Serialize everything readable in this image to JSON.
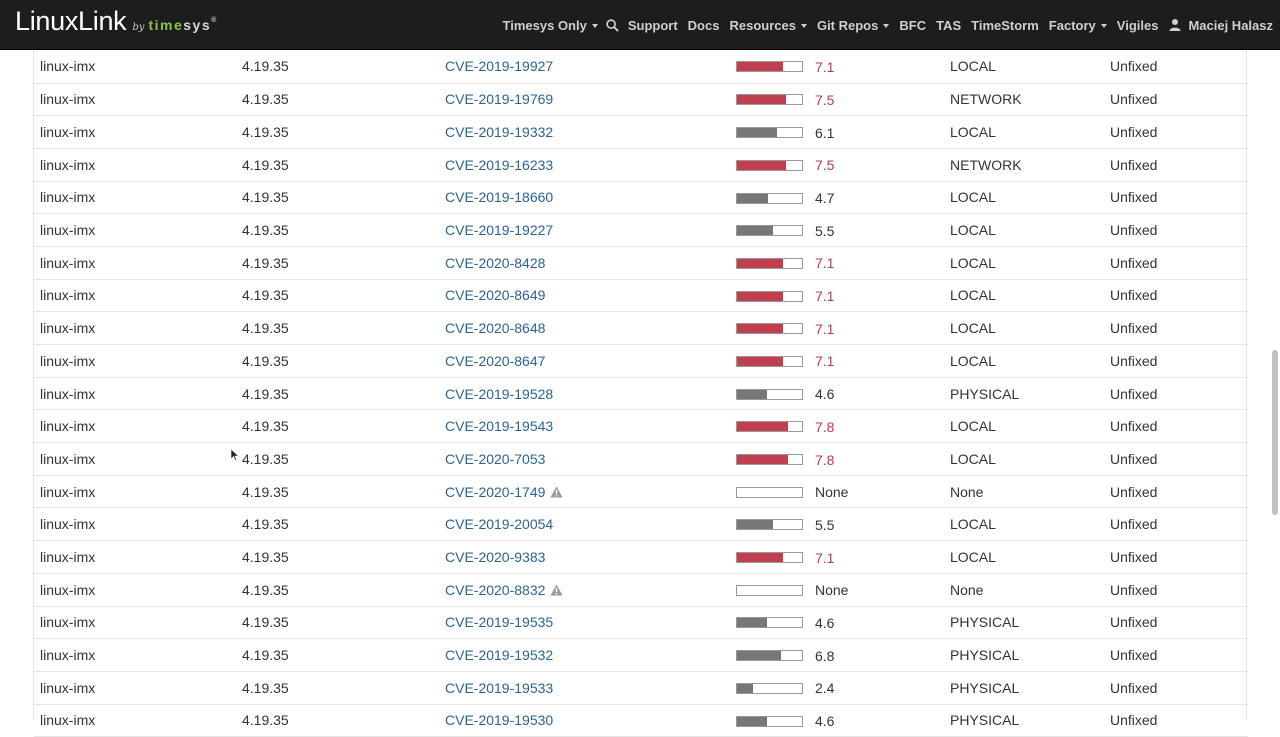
{
  "brand": {
    "main": "LinuxLink",
    "by": "by",
    "ts1": "time",
    "ts2": "sys",
    "tm": "®"
  },
  "nav": {
    "timesys_only": "Timesys Only",
    "support": "Support",
    "docs": "Docs",
    "resources": "Resources",
    "git_repos": "Git Repos",
    "bfc": "BFC",
    "tas": "TAS",
    "timestorm": "TimeStorm",
    "factory": "Factory",
    "vigiles": "Vigiles",
    "user": "Maciej Halasz"
  },
  "colors": {
    "high": "#c0404f",
    "medium": "#777777",
    "link": "#2a6496"
  },
  "rows": [
    {
      "package": "linux-imx",
      "version": "4.19.35",
      "cve": "CVE-2019-19927",
      "warning": false,
      "score": "7.1",
      "score_value": 7.1,
      "severity": "high",
      "vector": "LOCAL",
      "status": "Unfixed"
    },
    {
      "package": "linux-imx",
      "version": "4.19.35",
      "cve": "CVE-2019-19769",
      "warning": false,
      "score": "7.5",
      "score_value": 7.5,
      "severity": "high",
      "vector": "NETWORK",
      "status": "Unfixed"
    },
    {
      "package": "linux-imx",
      "version": "4.19.35",
      "cve": "CVE-2019-19332",
      "warning": false,
      "score": "6.1",
      "score_value": 6.1,
      "severity": "medium",
      "vector": "LOCAL",
      "status": "Unfixed"
    },
    {
      "package": "linux-imx",
      "version": "4.19.35",
      "cve": "CVE-2019-16233",
      "warning": false,
      "score": "7.5",
      "score_value": 7.5,
      "severity": "high",
      "vector": "NETWORK",
      "status": "Unfixed"
    },
    {
      "package": "linux-imx",
      "version": "4.19.35",
      "cve": "CVE-2019-18660",
      "warning": false,
      "score": "4.7",
      "score_value": 4.7,
      "severity": "medium",
      "vector": "LOCAL",
      "status": "Unfixed"
    },
    {
      "package": "linux-imx",
      "version": "4.19.35",
      "cve": "CVE-2019-19227",
      "warning": false,
      "score": "5.5",
      "score_value": 5.5,
      "severity": "medium",
      "vector": "LOCAL",
      "status": "Unfixed"
    },
    {
      "package": "linux-imx",
      "version": "4.19.35",
      "cve": "CVE-2020-8428",
      "warning": false,
      "score": "7.1",
      "score_value": 7.1,
      "severity": "high",
      "vector": "LOCAL",
      "status": "Unfixed"
    },
    {
      "package": "linux-imx",
      "version": "4.19.35",
      "cve": "CVE-2020-8649",
      "warning": false,
      "score": "7.1",
      "score_value": 7.1,
      "severity": "high",
      "vector": "LOCAL",
      "status": "Unfixed"
    },
    {
      "package": "linux-imx",
      "version": "4.19.35",
      "cve": "CVE-2020-8648",
      "warning": false,
      "score": "7.1",
      "score_value": 7.1,
      "severity": "high",
      "vector": "LOCAL",
      "status": "Unfixed"
    },
    {
      "package": "linux-imx",
      "version": "4.19.35",
      "cve": "CVE-2020-8647",
      "warning": false,
      "score": "7.1",
      "score_value": 7.1,
      "severity": "high",
      "vector": "LOCAL",
      "status": "Unfixed"
    },
    {
      "package": "linux-imx",
      "version": "4.19.35",
      "cve": "CVE-2019-19528",
      "warning": false,
      "score": "4.6",
      "score_value": 4.6,
      "severity": "medium",
      "vector": "PHYSICAL",
      "status": "Unfixed"
    },
    {
      "package": "linux-imx",
      "version": "4.19.35",
      "cve": "CVE-2019-19543",
      "warning": false,
      "score": "7.8",
      "score_value": 7.8,
      "severity": "high",
      "vector": "LOCAL",
      "status": "Unfixed"
    },
    {
      "package": "linux-imx",
      "version": "4.19.35",
      "cve": "CVE-2020-7053",
      "warning": false,
      "score": "7.8",
      "score_value": 7.8,
      "severity": "high",
      "vector": "LOCAL",
      "status": "Unfixed"
    },
    {
      "package": "linux-imx",
      "version": "4.19.35",
      "cve": "CVE-2020-1749",
      "warning": true,
      "score": "None",
      "score_value": 0,
      "severity": "none",
      "vector": "None",
      "status": "Unfixed"
    },
    {
      "package": "linux-imx",
      "version": "4.19.35",
      "cve": "CVE-2019-20054",
      "warning": false,
      "score": "5.5",
      "score_value": 5.5,
      "severity": "medium",
      "vector": "LOCAL",
      "status": "Unfixed"
    },
    {
      "package": "linux-imx",
      "version": "4.19.35",
      "cve": "CVE-2020-9383",
      "warning": false,
      "score": "7.1",
      "score_value": 7.1,
      "severity": "high",
      "vector": "LOCAL",
      "status": "Unfixed"
    },
    {
      "package": "linux-imx",
      "version": "4.19.35",
      "cve": "CVE-2020-8832",
      "warning": true,
      "score": "None",
      "score_value": 0,
      "severity": "none",
      "vector": "None",
      "status": "Unfixed"
    },
    {
      "package": "linux-imx",
      "version": "4.19.35",
      "cve": "CVE-2019-19535",
      "warning": false,
      "score": "4.6",
      "score_value": 4.6,
      "severity": "medium",
      "vector": "PHYSICAL",
      "status": "Unfixed"
    },
    {
      "package": "linux-imx",
      "version": "4.19.35",
      "cve": "CVE-2019-19532",
      "warning": false,
      "score": "6.8",
      "score_value": 6.8,
      "severity": "medium",
      "vector": "PHYSICAL",
      "status": "Unfixed"
    },
    {
      "package": "linux-imx",
      "version": "4.19.35",
      "cve": "CVE-2019-19533",
      "warning": false,
      "score": "2.4",
      "score_value": 2.4,
      "severity": "medium",
      "vector": "PHYSICAL",
      "status": "Unfixed"
    },
    {
      "package": "linux-imx",
      "version": "4.19.35",
      "cve": "CVE-2019-19530",
      "warning": false,
      "score": "4.6",
      "score_value": 4.6,
      "severity": "medium",
      "vector": "PHYSICAL",
      "status": "Unfixed"
    }
  ]
}
